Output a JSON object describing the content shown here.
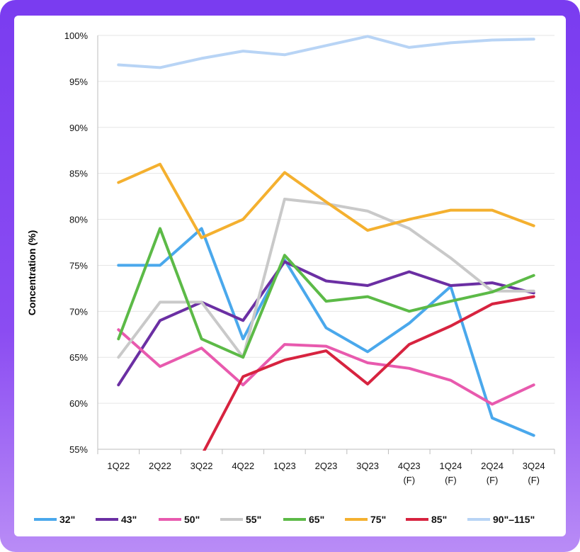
{
  "chart_data": {
    "type": "line",
    "ylabel": "Concentration (%)",
    "ylim": [
      55,
      100
    ],
    "yticks": [
      "55%",
      "60%",
      "65%",
      "70%",
      "75%",
      "80%",
      "85%",
      "90%",
      "95%",
      "100%"
    ],
    "categories": [
      [
        "1Q22"
      ],
      [
        "2Q22"
      ],
      [
        "3Q22"
      ],
      [
        "4Q22"
      ],
      [
        "1Q23"
      ],
      [
        "2Q23"
      ],
      [
        "3Q23"
      ],
      [
        "4Q23",
        "(F)"
      ],
      [
        "1Q24",
        "(F)"
      ],
      [
        "2Q24",
        "(F)"
      ],
      [
        "3Q24",
        "(F)"
      ]
    ],
    "grid": "horizontal",
    "legend_position": "bottom",
    "series": [
      {
        "name": "32\"",
        "color": "#4aa8ec",
        "values": [
          75,
          75,
          79,
          67,
          75.6,
          68.2,
          65.6,
          68.7,
          72.7,
          58.4,
          56.5
        ]
      },
      {
        "name": "43\"",
        "color": "#6b2fa3",
        "values": [
          62,
          69,
          71,
          69,
          75.4,
          73.3,
          72.8,
          74.3,
          72.8,
          73.1,
          72
        ]
      },
      {
        "name": "50\"",
        "color": "#e85aae",
        "values": [
          68,
          64,
          66,
          62,
          66.4,
          66.2,
          64.4,
          63.8,
          62.5,
          59.9,
          62
        ]
      },
      {
        "name": "55\"",
        "color": "#c9c9c9",
        "values": [
          65,
          71,
          71,
          65,
          82.2,
          81.7,
          80.9,
          79,
          75.8,
          72.2,
          72.2
        ]
      },
      {
        "name": "65\"",
        "color": "#5cba47",
        "values": [
          67,
          79,
          67,
          65,
          76.1,
          71.1,
          71.6,
          70,
          71.1,
          72.1,
          73.9
        ]
      },
      {
        "name": "75\"",
        "color": "#f4b02f",
        "values": [
          84,
          86,
          78,
          80,
          85.1,
          81.9,
          78.8,
          80,
          81,
          81,
          79.3
        ]
      },
      {
        "name": "85\"",
        "color": "#d7233f",
        "values": [
          null,
          null,
          54.3,
          62.9,
          64.7,
          65.7,
          62.1,
          66.4,
          68.4,
          70.8,
          71.6
        ]
      },
      {
        "name": "90\"–115\"",
        "color": "#b8d4f5",
        "values": [
          96.8,
          96.5,
          97.5,
          98.3,
          97.9,
          98.9,
          99.9,
          98.7,
          99.2,
          99.5,
          99.6
        ]
      }
    ]
  }
}
